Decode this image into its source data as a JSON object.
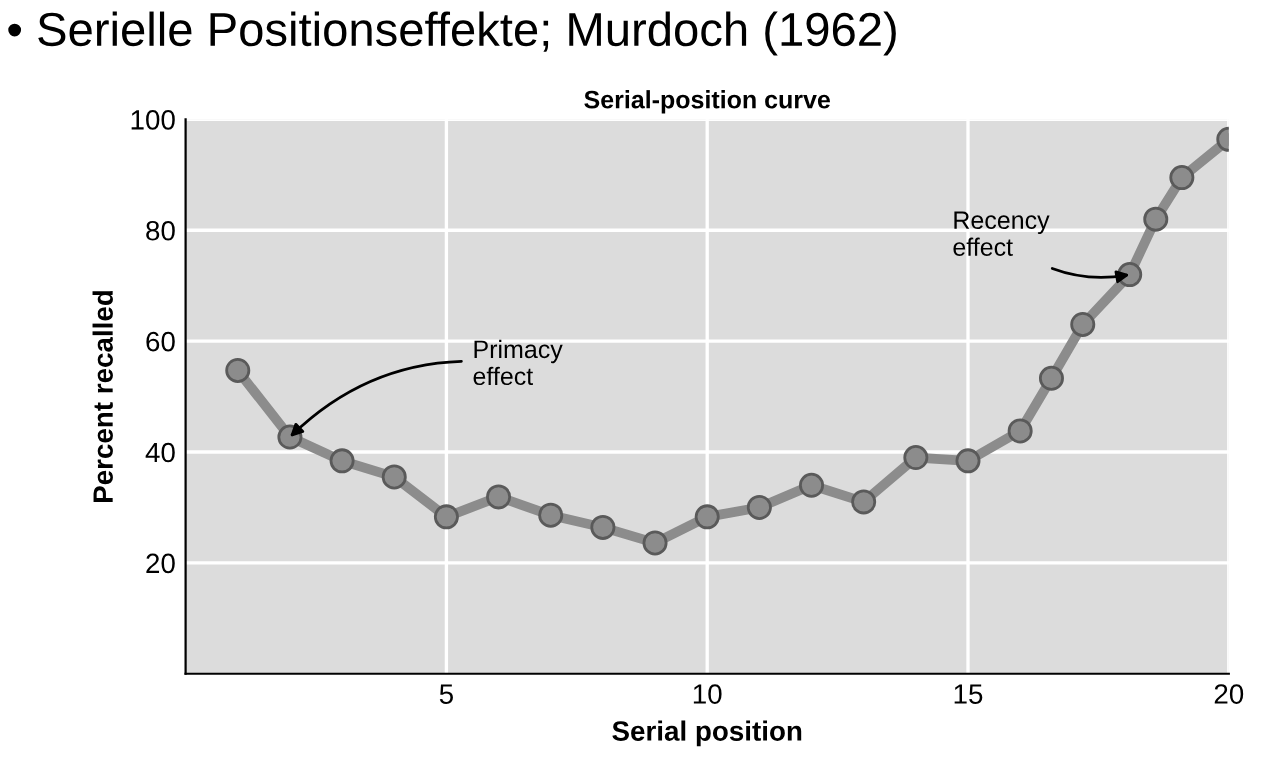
{
  "chart_data": {
    "type": "line",
    "title": "• Serielle Positionseffekte; Murdoch (1962)",
    "subtitle": "Serial-position curve",
    "xlabel": "Serial position",
    "ylabel": "Percent recalled",
    "x": [
      1,
      2,
      3,
      4,
      5,
      6,
      7,
      8,
      9,
      10,
      11,
      12,
      13,
      14,
      15,
      16,
      16.6,
      17.2,
      18.1,
      18.6,
      19.1,
      20
    ],
    "series": [
      {
        "color": "#8c8c8c",
        "values": [
          54.7,
          42.7,
          38.4,
          35.5,
          28.3,
          31.9,
          28.6,
          26.4,
          23.6,
          28.3,
          30,
          34,
          31,
          39,
          38.4,
          43.8,
          53.3,
          63,
          72,
          82,
          89.5,
          96.4
        ]
      }
    ],
    "annotations": [
      {
        "text": "Primacy\neffect",
        "x": 2,
        "y": 42.7
      },
      {
        "text": "Recency\neffect",
        "x": 18.1,
        "y": 72
      }
    ],
    "xlim": [
      0,
      20
    ],
    "ylim": [
      0,
      100
    ],
    "xticks": [
      5,
      10,
      15,
      20
    ],
    "yticks": [
      20,
      40,
      60,
      80,
      100
    ],
    "grid": true,
    "marker": "circle",
    "line_style": "solid"
  }
}
